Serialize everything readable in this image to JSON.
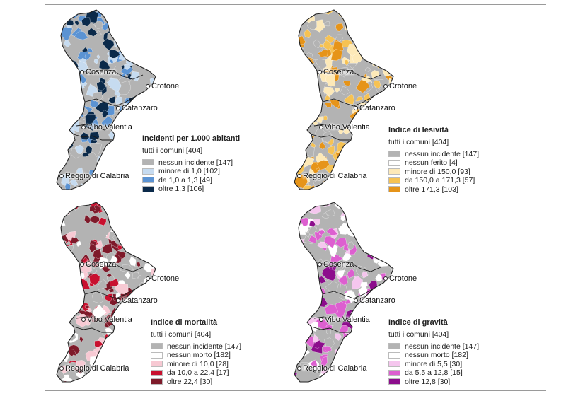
{
  "cities": {
    "cosenza": "Cosenza",
    "crotone": "Crotone",
    "catanzaro": "Catanzaro",
    "vibo": "Vibo Valentia",
    "reggio": "Reggio di Calabria"
  },
  "maps": [
    {
      "title": "Incidenti per 1.000 abitanti",
      "subtitle": "tutti i comuni [404]",
      "palette": [
        "#b3b3b3",
        "#c6dbf0",
        "#5b93d3",
        "#0b2a4a"
      ],
      "legend": [
        {
          "label": "nessun incidente [147]",
          "color": "#b3b3b3"
        },
        {
          "label": "minore di 1,0 [102]",
          "color": "#c6dbf0"
        },
        {
          "label": "da 1,0 a 1,3 [49]",
          "color": "#5b93d3"
        },
        {
          "label": "oltre 1,3 [106]",
          "color": "#0b2a4a"
        }
      ]
    },
    {
      "title": "Indice di lesività",
      "subtitle": "tutti i comuni [404]",
      "palette": [
        "#b3b3b3",
        "#fde9b8",
        "#f6c253",
        "#e69419"
      ],
      "legend": [
        {
          "label": "nessun incidente [147]",
          "color": "#b3b3b3"
        },
        {
          "label": "nessun ferito [4]",
          "color": "#ffffff"
        },
        {
          "label": "minore di 150,0 [93]",
          "color": "#fde9b8"
        },
        {
          "label": "da 150,0 a 171,3 [57]",
          "color": "#f6c253"
        },
        {
          "label": "oltre 171,3 [103]",
          "color": "#e69419"
        }
      ]
    },
    {
      "title": "Indice di mortalità",
      "subtitle": "tutti i comuni [404]",
      "palette": [
        "#b3b3b3",
        "#ffffff",
        "#f7c9d3",
        "#c8102e",
        "#7e1a2a"
      ],
      "legend": [
        {
          "label": "nessun incidente [147]",
          "color": "#b3b3b3"
        },
        {
          "label": "nessun morto [182]",
          "color": "#ffffff"
        },
        {
          "label": "minore di 10,0 [28]",
          "color": "#f7c9d3"
        },
        {
          "label": "da 10,0 a 22,4 [17]",
          "color": "#c8102e"
        },
        {
          "label": "oltre 22,4 [30]",
          "color": "#7e1a2a"
        }
      ]
    },
    {
      "title": "Indice di gravità",
      "subtitle": "tutti i comuni [404]",
      "palette": [
        "#b3b3b3",
        "#ffffff",
        "#f5c6ee",
        "#dd5fd0",
        "#8c0d8c"
      ],
      "legend": [
        {
          "label": "nessun incidente [147]",
          "color": "#b3b3b3"
        },
        {
          "label": "nessun morto [182]",
          "color": "#ffffff"
        },
        {
          "label": "minore di 5,5 [30]",
          "color": "#f5c6ee"
        },
        {
          "label": "da 5,5 a 12,8 [15]",
          "color": "#dd5fd0"
        },
        {
          "label": "oltre 12,8 [30]",
          "color": "#8c0d8c"
        }
      ]
    }
  ]
}
